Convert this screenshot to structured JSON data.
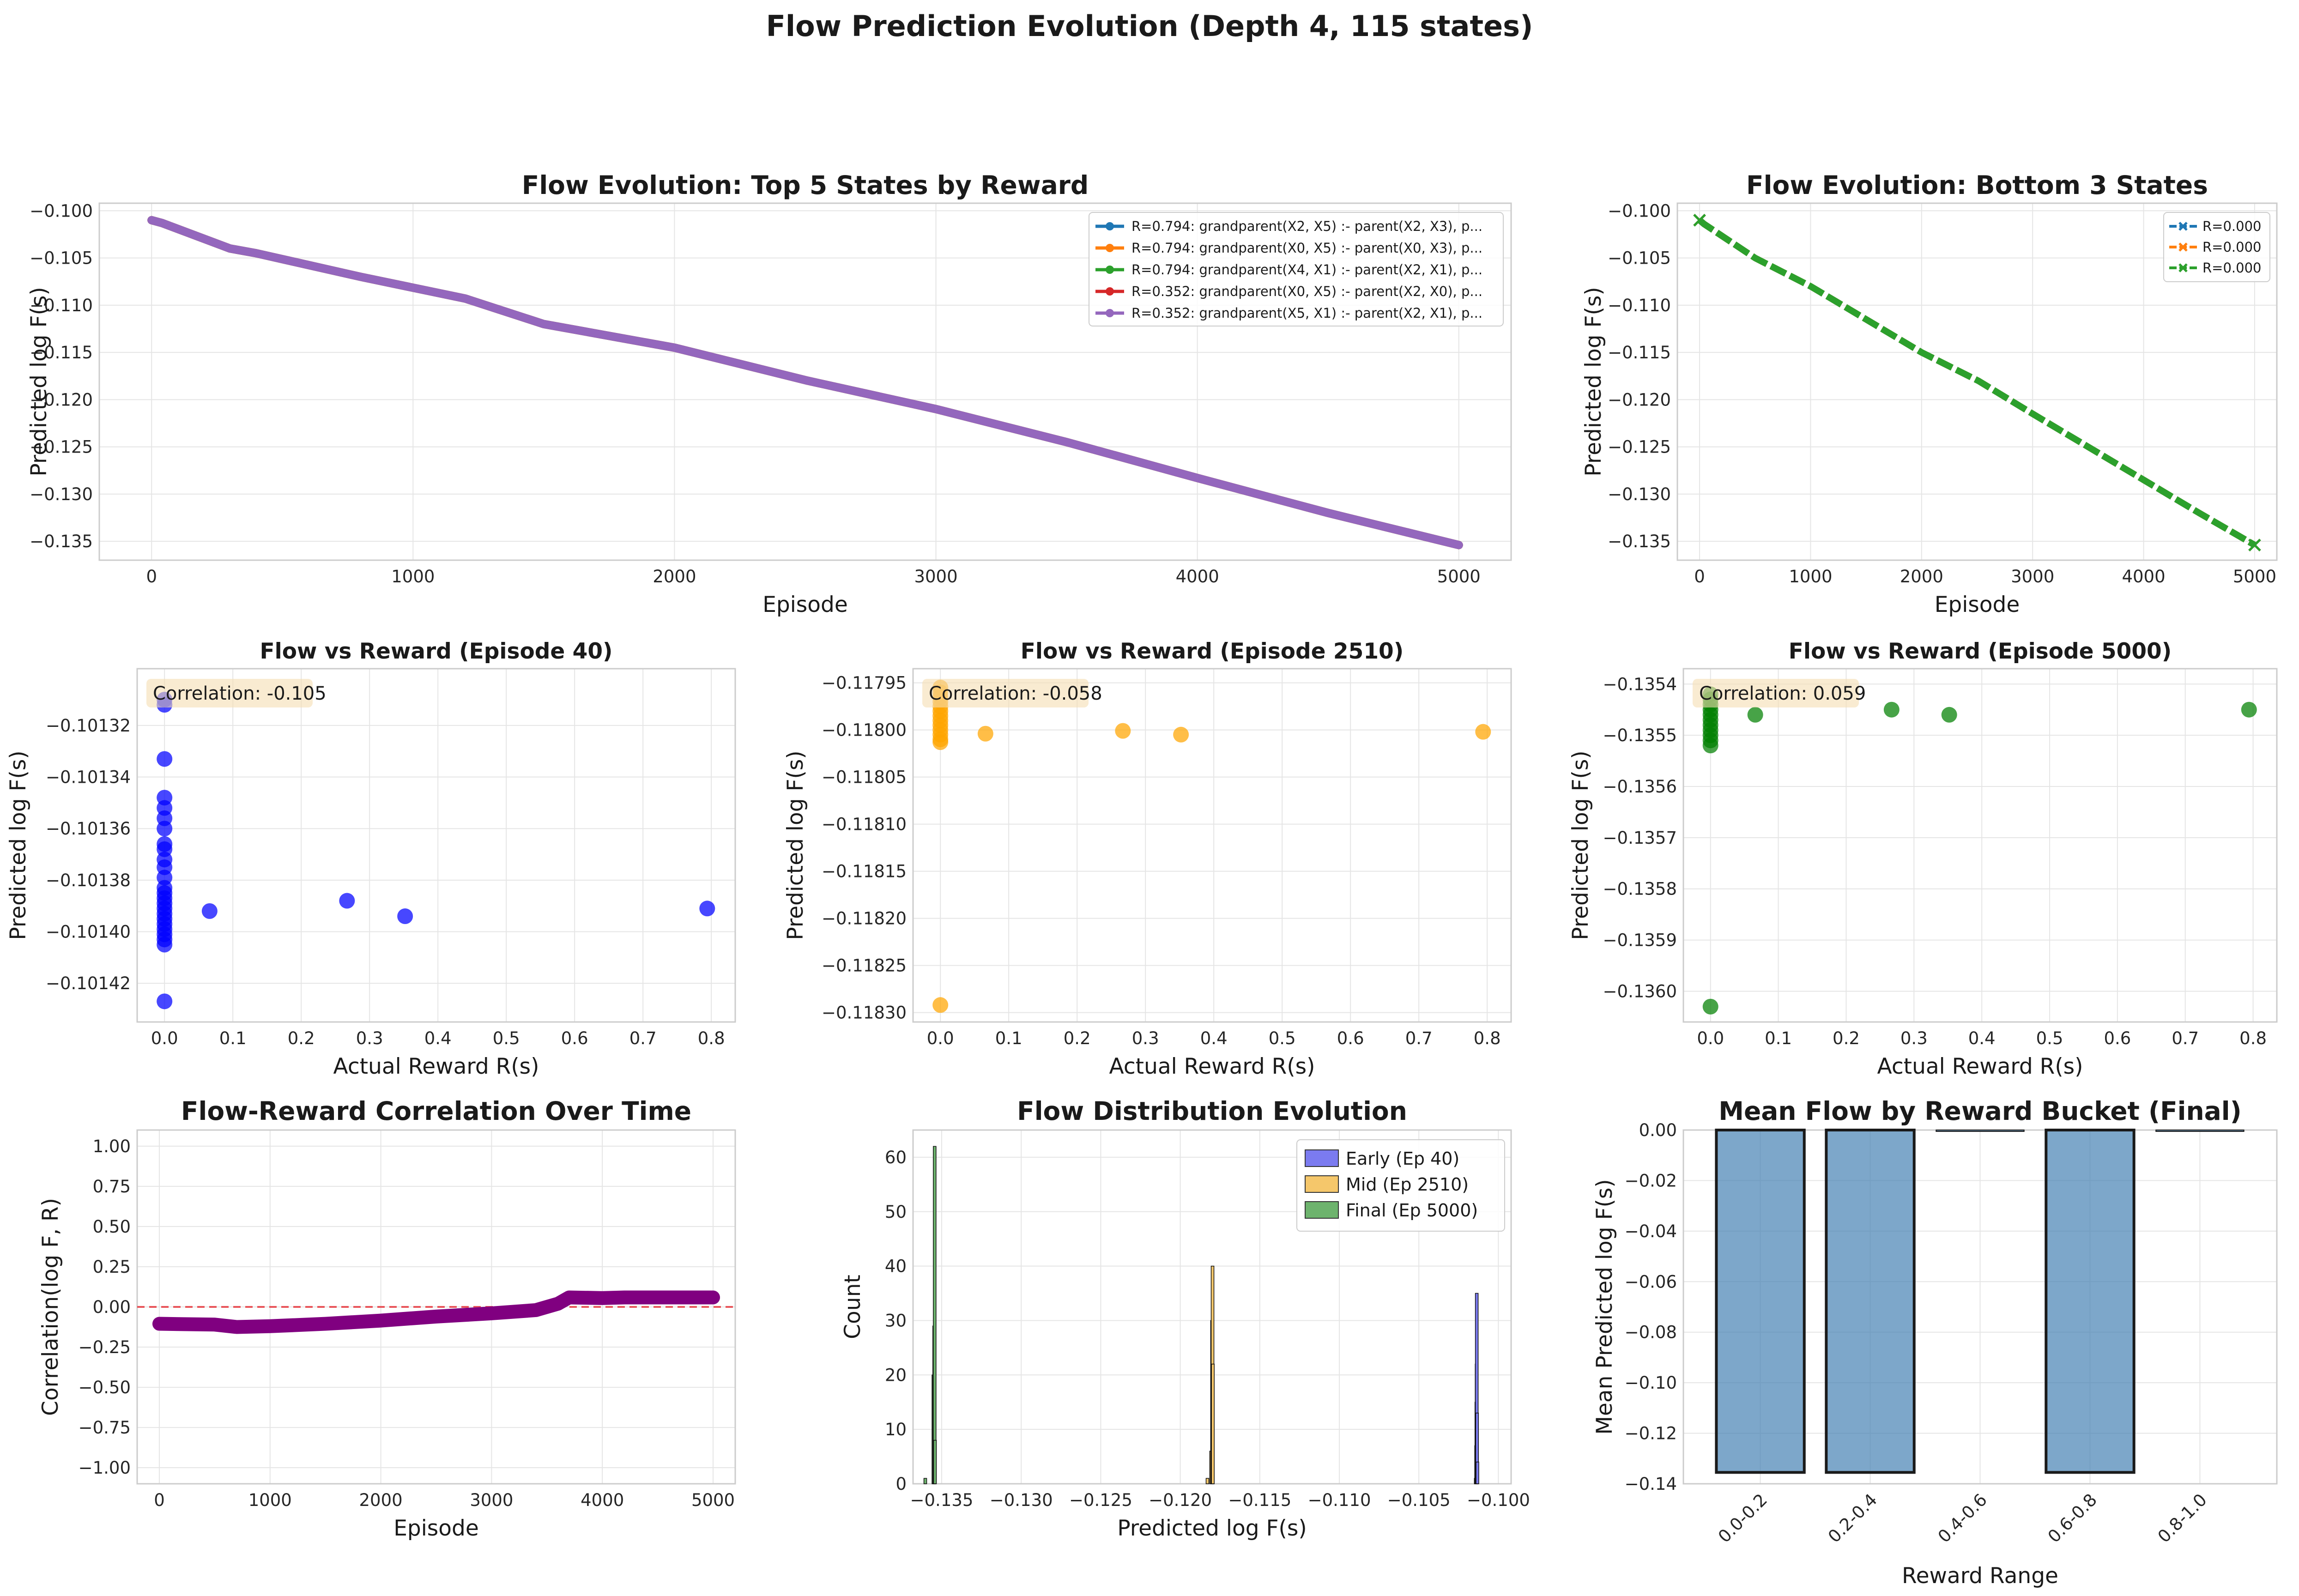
{
  "figure": {
    "title": "Flow Prediction Evolution (Depth 4, 115 states)"
  },
  "panels": {
    "top5": {
      "title": "Flow Evolution: Top 5 States by Reward",
      "xlabel": "Episode",
      "ylabel": "Predicted log F(s)",
      "legend": [
        "R=0.794: grandparent(X2, X5) :- parent(X2, X3), p...",
        "R=0.794: grandparent(X0, X5) :- parent(X0, X3), p...",
        "R=0.794: grandparent(X4, X1) :- parent(X2, X1), p...",
        "R=0.352: grandparent(X0, X5) :- parent(X2, X0), p...",
        "R=0.352: grandparent(X5, X1) :- parent(X2, X1), p..."
      ]
    },
    "bottom3": {
      "title": "Flow Evolution: Bottom 3 States",
      "xlabel": "Episode",
      "ylabel": "Predicted log F(s)",
      "legend": [
        "R=0.000",
        "R=0.000",
        "R=0.000"
      ]
    },
    "scatter40": {
      "title": "Flow vs Reward (Episode 40)",
      "xlabel": "Actual Reward R(s)",
      "ylabel": "Predicted log F(s)",
      "annotation": "Correlation: -0.105"
    },
    "scatter2510": {
      "title": "Flow vs Reward (Episode 2510)",
      "xlabel": "Actual Reward R(s)",
      "ylabel": "Predicted log F(s)",
      "annotation": "Correlation: -0.058"
    },
    "scatter5000": {
      "title": "Flow vs Reward (Episode 5000)",
      "xlabel": "Actual Reward R(s)",
      "ylabel": "Predicted log F(s)",
      "annotation": "Correlation: 0.059"
    },
    "corr": {
      "title": "Flow-Reward Correlation Over Time",
      "xlabel": "Episode",
      "ylabel": "Correlation(log F, R)"
    },
    "hist": {
      "title": "Flow Distribution Evolution",
      "xlabel": "Predicted log F(s)",
      "ylabel": "Count",
      "legend": [
        "Early (Ep 40)",
        "Mid (Ep 2510)",
        "Final (Ep 5000)"
      ]
    },
    "bars": {
      "title": "Mean Flow by Reward Bucket (Final)",
      "xlabel": "Reward Range",
      "ylabel": "Mean Predicted log F(s)"
    }
  },
  "colors": {
    "blue": "#1f77b4",
    "orange": "#ff7f0e",
    "green": "#2ca02c",
    "red": "#d62728",
    "purple": "#9467bd",
    "scatter_blue": "#0000ff",
    "scatter_orange": "#ffa500",
    "scatter_green": "#008000",
    "corr_line": "#800080",
    "zero_line": "#e8555a",
    "bar": "#4682b4",
    "annot_box": "#f5deb3",
    "grid": "#e5e5e5",
    "spine": "#cccccc"
  },
  "chart_data": [
    {
      "id": "top5",
      "type": "line",
      "xlim": [
        -200,
        5200
      ],
      "ylim": [
        -0.137,
        -0.0992
      ],
      "xticks": [
        0,
        1000,
        2000,
        3000,
        4000,
        5000
      ],
      "yticks": [
        -0.135,
        -0.13,
        -0.125,
        -0.12,
        -0.115,
        -0.11,
        -0.105,
        -0.1
      ],
      "x": [
        0,
        40,
        300,
        400,
        800,
        1200,
        1500,
        2000,
        2510,
        3000,
        3500,
        4000,
        4500,
        5000
      ],
      "series": [
        {
          "name": "R=0.794: grandparent(X2, X5) :- parent(X2, X3), p...",
          "color": "blue",
          "values": [
            -0.101,
            -0.1013,
            -0.104,
            -0.1045,
            -0.107,
            -0.1093,
            -0.112,
            -0.1145,
            -0.118,
            -0.121,
            -0.1245,
            -0.1283,
            -0.132,
            -0.1354
          ]
        },
        {
          "name": "R=0.794: grandparent(X0, X5) :- parent(X0, X3), p...",
          "color": "orange",
          "values": [
            -0.101,
            -0.1013,
            -0.104,
            -0.1045,
            -0.107,
            -0.1093,
            -0.112,
            -0.1145,
            -0.118,
            -0.121,
            -0.1245,
            -0.1283,
            -0.132,
            -0.1354
          ]
        },
        {
          "name": "R=0.794: grandparent(X4, X1) :- parent(X2, X1), p...",
          "color": "green",
          "values": [
            -0.101,
            -0.1013,
            -0.104,
            -0.1045,
            -0.107,
            -0.1093,
            -0.112,
            -0.1145,
            -0.118,
            -0.121,
            -0.1245,
            -0.1283,
            -0.132,
            -0.1354
          ]
        },
        {
          "name": "R=0.352: grandparent(X0, X5) :- parent(X2, X0), p...",
          "color": "red",
          "values": [
            -0.101,
            -0.1013,
            -0.104,
            -0.1045,
            -0.107,
            -0.1093,
            -0.112,
            -0.1145,
            -0.118,
            -0.121,
            -0.1245,
            -0.1283,
            -0.132,
            -0.1354
          ]
        },
        {
          "name": "R=0.352: grandparent(X5, X1) :- parent(X2, X1), p...",
          "color": "purple",
          "values": [
            -0.101,
            -0.1013,
            -0.104,
            -0.1045,
            -0.107,
            -0.1093,
            -0.112,
            -0.1145,
            -0.118,
            -0.121,
            -0.1245,
            -0.1283,
            -0.132,
            -0.1354
          ]
        }
      ]
    },
    {
      "id": "bottom3",
      "type": "line",
      "xlim": [
        -200,
        5200
      ],
      "ylim": [
        -0.137,
        -0.0992
      ],
      "xticks": [
        0,
        1000,
        2000,
        3000,
        4000,
        5000
      ],
      "yticks": [
        -0.135,
        -0.13,
        -0.125,
        -0.12,
        -0.115,
        -0.11,
        -0.105,
        -0.1
      ],
      "x": [
        0,
        40,
        500,
        1000,
        1500,
        2000,
        2510,
        3000,
        3500,
        4000,
        4500,
        5000
      ],
      "series": [
        {
          "name": "R=0.000",
          "color": "blue",
          "values": [
            -0.101,
            -0.1014,
            -0.105,
            -0.108,
            -0.1115,
            -0.115,
            -0.118,
            -0.1215,
            -0.125,
            -0.1285,
            -0.132,
            -0.1354
          ]
        },
        {
          "name": "R=0.000",
          "color": "orange",
          "values": [
            -0.101,
            -0.1014,
            -0.105,
            -0.108,
            -0.1115,
            -0.115,
            -0.118,
            -0.1215,
            -0.125,
            -0.1285,
            -0.132,
            -0.1354
          ]
        },
        {
          "name": "R=0.000",
          "color": "green",
          "values": [
            -0.101,
            -0.1014,
            -0.105,
            -0.108,
            -0.1115,
            -0.115,
            -0.118,
            -0.1215,
            -0.125,
            -0.1285,
            -0.132,
            -0.1354
          ]
        }
      ]
    },
    {
      "id": "scatter40",
      "type": "scatter",
      "color": "scatter_blue",
      "xlim": [
        -0.04,
        0.835
      ],
      "ylim": [
        -0.101435,
        -0.101298
      ],
      "xticks": [
        0.0,
        0.1,
        0.2,
        0.3,
        0.4,
        0.5,
        0.6,
        0.7,
        0.8
      ],
      "yticks": [
        -0.10142,
        -0.1014,
        -0.10138,
        -0.10136,
        -0.10134,
        -0.10132
      ],
      "points": [
        [
          0,
          -0.10131
        ],
        [
          0,
          -0.101312
        ],
        [
          0,
          -0.101333
        ],
        [
          0,
          -0.101348
        ],
        [
          0,
          -0.101352
        ],
        [
          0,
          -0.101356
        ],
        [
          0,
          -0.10136
        ],
        [
          0,
          -0.101366
        ],
        [
          0,
          -0.101368
        ],
        [
          0,
          -0.101372
        ],
        [
          0,
          -0.101375
        ],
        [
          0,
          -0.101379
        ],
        [
          0,
          -0.101383
        ],
        [
          0,
          -0.101385
        ],
        [
          0,
          -0.101387
        ],
        [
          0,
          -0.101389
        ],
        [
          0,
          -0.101391
        ],
        [
          0,
          -0.101393
        ],
        [
          0,
          -0.101395
        ],
        [
          0,
          -0.101397
        ],
        [
          0,
          -0.101399
        ],
        [
          0,
          -0.101401
        ],
        [
          0,
          -0.101403
        ],
        [
          0,
          -0.101405
        ],
        [
          0,
          -0.101427
        ],
        [
          0.066,
          -0.101392
        ],
        [
          0.267,
          -0.101388
        ],
        [
          0.352,
          -0.101394
        ],
        [
          0.794,
          -0.101391
        ]
      ]
    },
    {
      "id": "scatter2510",
      "type": "scatter",
      "color": "scatter_orange",
      "xlim": [
        -0.04,
        0.835
      ],
      "ylim": [
        -0.11831,
        -0.117935
      ],
      "xticks": [
        0.0,
        0.1,
        0.2,
        0.3,
        0.4,
        0.5,
        0.6,
        0.7,
        0.8
      ],
      "yticks": [
        -0.1183,
        -0.11825,
        -0.1182,
        -0.11815,
        -0.1181,
        -0.11805,
        -0.118,
        -0.11795
      ],
      "points": [
        [
          0,
          -0.117955
        ],
        [
          0,
          -0.11796
        ],
        [
          0,
          -0.117965
        ],
        [
          0,
          -0.11797
        ],
        [
          0,
          -0.117975
        ],
        [
          0,
          -0.11798
        ],
        [
          0,
          -0.117985
        ],
        [
          0,
          -0.11799
        ],
        [
          0,
          -0.117995
        ],
        [
          0,
          -0.118
        ],
        [
          0,
          -0.118005
        ],
        [
          0,
          -0.11801
        ],
        [
          0,
          -0.118013
        ],
        [
          0,
          -0.118292
        ],
        [
          0.066,
          -0.118004
        ],
        [
          0.267,
          -0.118001
        ],
        [
          0.352,
          -0.118005
        ],
        [
          0.794,
          -0.118002
        ]
      ]
    },
    {
      "id": "scatter5000",
      "type": "scatter",
      "color": "scatter_green",
      "xlim": [
        -0.04,
        0.835
      ],
      "ylim": [
        -0.13606,
        -0.13537
      ],
      "xticks": [
        0.0,
        0.1,
        0.2,
        0.3,
        0.4,
        0.5,
        0.6,
        0.7,
        0.8
      ],
      "yticks": [
        -0.136,
        -0.1359,
        -0.1358,
        -0.1357,
        -0.1356,
        -0.1355,
        -0.1354
      ],
      "points": [
        [
          0,
          -0.13542
        ],
        [
          0,
          -0.13543
        ],
        [
          0,
          -0.13544
        ],
        [
          0,
          -0.13545
        ],
        [
          0,
          -0.13546
        ],
        [
          0,
          -0.13547
        ],
        [
          0,
          -0.13548
        ],
        [
          0,
          -0.13549
        ],
        [
          0,
          -0.1355
        ],
        [
          0,
          -0.13551
        ],
        [
          0,
          -0.13552
        ],
        [
          0,
          -0.13603
        ],
        [
          0.066,
          -0.13546
        ],
        [
          0.267,
          -0.13545
        ],
        [
          0.352,
          -0.13546
        ],
        [
          0.794,
          -0.13545
        ]
      ]
    },
    {
      "id": "corr",
      "type": "line",
      "color": "corr_line",
      "xlim": [
        -200,
        5200
      ],
      "ylim": [
        -1.1,
        1.1
      ],
      "xticks": [
        0,
        1000,
        2000,
        3000,
        4000,
        5000
      ],
      "yticks": [
        -1.0,
        -0.75,
        -0.5,
        -0.25,
        0.0,
        0.25,
        0.5,
        0.75,
        1.0
      ],
      "reference_line": 0.0,
      "x": [
        0,
        500,
        700,
        1000,
        1500,
        2000,
        2500,
        3000,
        3400,
        3600,
        3700,
        4000,
        4200,
        4600,
        5000
      ],
      "values": [
        -0.105,
        -0.11,
        -0.125,
        -0.12,
        -0.105,
        -0.085,
        -0.06,
        -0.04,
        -0.02,
        0.02,
        0.059,
        0.055,
        0.059,
        0.059,
        0.059
      ]
    },
    {
      "id": "hist",
      "type": "bar",
      "xlim": [
        -0.1368,
        -0.0992
      ],
      "ylim": [
        0,
        65
      ],
      "xticks": [
        -0.135,
        -0.13,
        -0.125,
        -0.12,
        -0.115,
        -0.11,
        -0.105,
        -0.1
      ],
      "yticks": [
        0,
        10,
        20,
        30,
        40,
        50,
        60
      ],
      "series": [
        {
          "name": "Early (Ep 40)",
          "color": "#7b7bf0",
          "bins": [
            [
              -0.101425,
              1
            ],
            [
              -0.1014,
              7
            ],
            [
              -0.101385,
              15
            ],
            [
              -0.10137,
              22
            ],
            [
              -0.10136,
              35
            ],
            [
              -0.10134,
              13
            ],
            [
              -0.10132,
              4
            ]
          ]
        },
        {
          "name": "Mid (Ep 2510)",
          "color": "#f5c76b",
          "bins": [
            [
              -0.11829,
              1
            ],
            [
              -0.11806,
              6
            ],
            [
              -0.118,
              30
            ],
            [
              -0.11797,
              40
            ],
            [
              -0.11795,
              22
            ]
          ]
        },
        {
          "name": "Final (Ep 5000)",
          "color": "#6db36d",
          "bins": [
            [
              -0.13603,
              1
            ],
            [
              -0.13552,
              20
            ],
            [
              -0.13547,
              29
            ],
            [
              -0.13544,
              62
            ],
            [
              -0.13542,
              8
            ]
          ]
        }
      ]
    },
    {
      "id": "bars",
      "type": "bar",
      "categories": [
        "0.0-0.2",
        "0.2-0.4",
        "0.4-0.6",
        "0.6-0.8",
        "0.8-1.0"
      ],
      "values": [
        -0.1355,
        -0.1355,
        0,
        -0.1355,
        0
      ],
      "ylim": [
        -0.14,
        0.0
      ],
      "yticks": [
        -0.14,
        -0.12,
        -0.1,
        -0.08,
        -0.06,
        -0.04,
        -0.02,
        0.0
      ]
    }
  ]
}
